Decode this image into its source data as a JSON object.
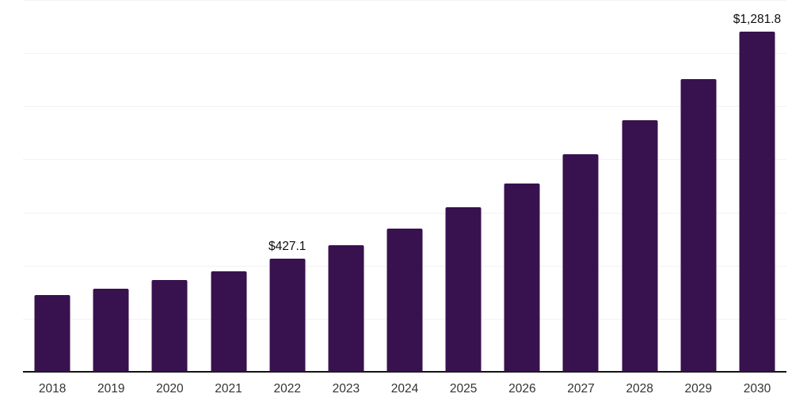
{
  "chart_data": {
    "type": "bar",
    "title": "",
    "xlabel": "",
    "ylabel": "",
    "categories": [
      "2018",
      "2019",
      "2020",
      "2021",
      "2022",
      "2023",
      "2024",
      "2025",
      "2026",
      "2027",
      "2028",
      "2029",
      "2030"
    ],
    "values": [
      288,
      313,
      346,
      379,
      427.1,
      477,
      540,
      620,
      709,
      820,
      948,
      1103,
      1281.8
    ],
    "data_labels": [
      "",
      "",
      "",
      "",
      "$427.1",
      "",
      "",
      "",
      "",
      "",
      "",
      "",
      "$1,281.8"
    ],
    "ylim": [
      0,
      1400
    ],
    "grid_step": 200,
    "grid": true,
    "legend_position": "none"
  },
  "colors": {
    "bar": "#38114F",
    "axis": "#121212",
    "gridline": "#f2f2f2",
    "tick_label": "#333333",
    "data_label": "#0d0d0d",
    "background": "#ffffff"
  }
}
